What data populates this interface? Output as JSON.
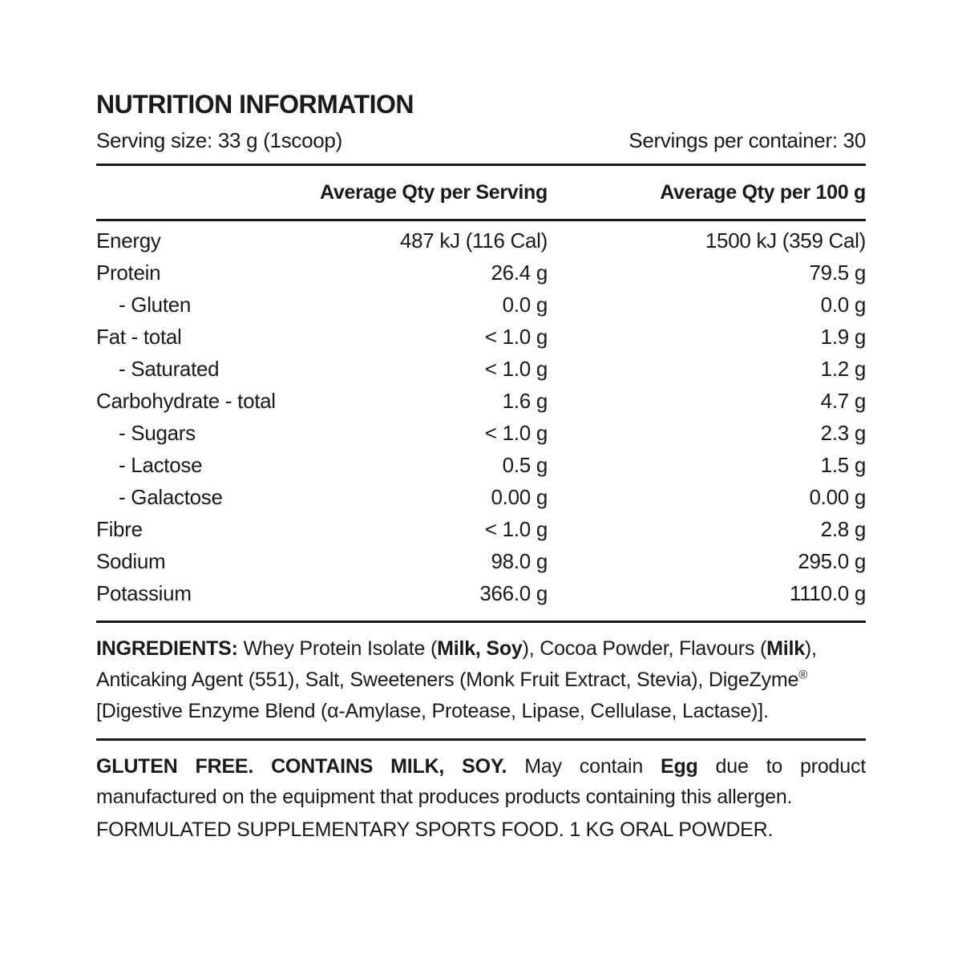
{
  "colors": {
    "text": "#1a1a1a",
    "background": "#ffffff",
    "rule": "#1a1a1a"
  },
  "header": {
    "title": "NUTRITION INFORMATION",
    "serving_size": "Serving size: 33 g (1scoop)",
    "servings_per_container": "Servings per container: 30"
  },
  "table": {
    "columns": [
      "",
      "Average Qty per Serving",
      "Average Qty per 100 g"
    ],
    "rows": [
      {
        "label": "Energy",
        "indent": false,
        "per_serving": "487 kJ (116 Cal)",
        "per_100g": "1500 kJ (359 Cal)"
      },
      {
        "label": "Protein",
        "indent": false,
        "per_serving": "26.4 g",
        "per_100g": "79.5 g"
      },
      {
        "label": "- Gluten",
        "indent": true,
        "per_serving": "0.0 g",
        "per_100g": "0.0 g"
      },
      {
        "label": "Fat - total",
        "indent": false,
        "per_serving": "< 1.0 g",
        "per_100g": "1.9 g"
      },
      {
        "label": "- Saturated",
        "indent": true,
        "per_serving": "< 1.0 g",
        "per_100g": "1.2 g"
      },
      {
        "label": "Carbohydrate - total",
        "indent": false,
        "per_serving": "1.6 g",
        "per_100g": "4.7 g"
      },
      {
        "label": "- Sugars",
        "indent": true,
        "per_serving": "< 1.0 g",
        "per_100g": "2.3 g"
      },
      {
        "label": "- Lactose",
        "indent": true,
        "per_serving": "0.5 g",
        "per_100g": "1.5 g"
      },
      {
        "label": "- Galactose",
        "indent": true,
        "per_serving": "0.00 g",
        "per_100g": "0.00 g"
      },
      {
        "label": "Fibre",
        "indent": false,
        "per_serving": "< 1.0 g",
        "per_100g": "2.8 g"
      },
      {
        "label": "Sodium",
        "indent": false,
        "per_serving": "98.0 g",
        "per_100g": "295.0 g"
      },
      {
        "label": "Potassium",
        "indent": false,
        "per_serving": "366.0 g",
        "per_100g": "1110.0 g"
      }
    ]
  },
  "ingredients": {
    "segments": [
      {
        "text": "INGREDIENTS: ",
        "bold": true
      },
      {
        "text": "Whey Protein Isolate (",
        "bold": false
      },
      {
        "text": "Milk, Soy",
        "bold": true
      },
      {
        "text": "), Cocoa Powder, Flavours (",
        "bold": false
      },
      {
        "text": "Milk",
        "bold": true
      },
      {
        "text": "), Anticaking Agent (551), Salt, Sweeteners (Monk Fruit Extract, Stevia), DigeZyme",
        "bold": false
      },
      {
        "text": "®",
        "bold": false,
        "sup": true
      },
      {
        "text": " [Digestive Enzyme Blend (α-Amylase, Protease, Lipase, Cellulase, Lactase)].",
        "bold": false
      }
    ]
  },
  "allergen": {
    "segments": [
      {
        "text": "GLUTEN FREE. CONTAINS MILK, SOY. ",
        "bold": true
      },
      {
        "text": "May contain ",
        "bold": false
      },
      {
        "text": "Egg",
        "bold": true
      },
      {
        "text": " due to product manufactured on the equipment that produces products containing this allergen.",
        "bold": false
      }
    ]
  },
  "footer": {
    "text": "FORMULATED SUPPLEMENTARY SPORTS FOOD. 1 KG ORAL POWDER."
  }
}
